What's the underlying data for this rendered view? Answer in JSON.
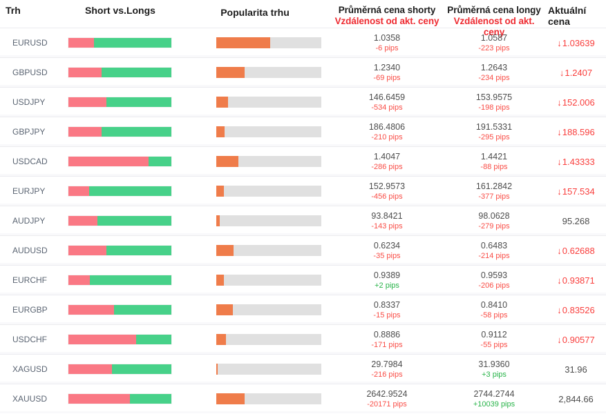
{
  "header": {
    "market": "Trh",
    "short_vs_longs": "Short vs.Longs",
    "popularity": "Popularita trhu",
    "avg_short_line1": "Průměrná cena shorty",
    "avg_short_line2": "Vzdálenost od akt. ceny",
    "avg_long_line1": "Průměrná cena longy",
    "avg_long_line2": "Vzdálenost od akt. ceny",
    "current_line1": "Aktuální",
    "current_line2": "cena"
  },
  "icons": {
    "down_arrow": "↓"
  },
  "colors": {
    "short_bar": "#fa7884",
    "long_bar": "#47d189",
    "popularity_bar": "#ef7c4a",
    "popularity_track": "#e0e0e0",
    "negative_text": "#f94c45",
    "positive_text": "#27b348",
    "down_price_text": "#f93e3c",
    "header_red": "#ee2b31"
  },
  "rows": [
    {
      "market": "EURUSD",
      "short_pct": 25,
      "popularity_pct": 51,
      "avg_short_price": "1.0358",
      "short_distance": "-6 pips",
      "avg_long_price": "1.0587",
      "long_distance": "-223 pips",
      "current_price": "1.03639",
      "current_direction": "down"
    },
    {
      "market": "GBPUSD",
      "short_pct": 32,
      "popularity_pct": 27,
      "avg_short_price": "1.2340",
      "short_distance": "-69 pips",
      "avg_long_price": "1.2643",
      "long_distance": "-234 pips",
      "current_price": "1.2407",
      "current_direction": "down"
    },
    {
      "market": "USDJPY",
      "short_pct": 37,
      "popularity_pct": 11,
      "avg_short_price": "146.6459",
      "short_distance": "-534 pips",
      "avg_long_price": "153.9575",
      "long_distance": "-198 pips",
      "current_price": "152.006",
      "current_direction": "down"
    },
    {
      "market": "GBPJPY",
      "short_pct": 32,
      "popularity_pct": 8,
      "avg_short_price": "186.4806",
      "short_distance": "-210 pips",
      "avg_long_price": "191.5331",
      "long_distance": "-295 pips",
      "current_price": "188.596",
      "current_direction": "down"
    },
    {
      "market": "USDCAD",
      "short_pct": 78,
      "popularity_pct": 21,
      "avg_short_price": "1.4047",
      "short_distance": "-286 pips",
      "avg_long_price": "1.4421",
      "long_distance": "-88 pips",
      "current_price": "1.43333",
      "current_direction": "down"
    },
    {
      "market": "EURJPY",
      "short_pct": 20,
      "popularity_pct": 7,
      "avg_short_price": "152.9573",
      "short_distance": "-456 pips",
      "avg_long_price": "161.2842",
      "long_distance": "-377 pips",
      "current_price": "157.534",
      "current_direction": "down"
    },
    {
      "market": "AUDJPY",
      "short_pct": 28,
      "popularity_pct": 3.5,
      "avg_short_price": "93.8421",
      "short_distance": "-143 pips",
      "avg_long_price": "98.0628",
      "long_distance": "-279 pips",
      "current_price": "95.268",
      "current_direction": "none"
    },
    {
      "market": "AUDUSD",
      "short_pct": 37,
      "popularity_pct": 16.5,
      "avg_short_price": "0.6234",
      "short_distance": "-35 pips",
      "avg_long_price": "0.6483",
      "long_distance": "-214 pips",
      "current_price": "0.62688",
      "current_direction": "down"
    },
    {
      "market": "EURCHF",
      "short_pct": 21,
      "popularity_pct": 7,
      "avg_short_price": "0.9389",
      "short_distance": "+2 pips",
      "avg_long_price": "0.9593",
      "long_distance": "-206 pips",
      "current_price": "0.93871",
      "current_direction": "down"
    },
    {
      "market": "EURGBP",
      "short_pct": 44,
      "popularity_pct": 15.5,
      "avg_short_price": "0.8337",
      "short_distance": "-15 pips",
      "avg_long_price": "0.8410",
      "long_distance": "-58 pips",
      "current_price": "0.83526",
      "current_direction": "down"
    },
    {
      "market": "USDCHF",
      "short_pct": 66,
      "popularity_pct": 9,
      "avg_short_price": "0.8886",
      "short_distance": "-171 pips",
      "avg_long_price": "0.9112",
      "long_distance": "-55 pips",
      "current_price": "0.90577",
      "current_direction": "down"
    },
    {
      "market": "XAGUSD",
      "short_pct": 42,
      "popularity_pct": 1.5,
      "avg_short_price": "29.7984",
      "short_distance": "-216 pips",
      "avg_long_price": "31.9360",
      "long_distance": "+3 pips",
      "current_price": "31.96",
      "current_direction": "none"
    },
    {
      "market": "XAUUSD",
      "short_pct": 60,
      "popularity_pct": 27,
      "avg_short_price": "2642.9524",
      "short_distance": "-20171 pips",
      "avg_long_price": "2744.2744",
      "long_distance": "+10039 pips",
      "current_price": "2,844.66",
      "current_direction": "none"
    }
  ]
}
